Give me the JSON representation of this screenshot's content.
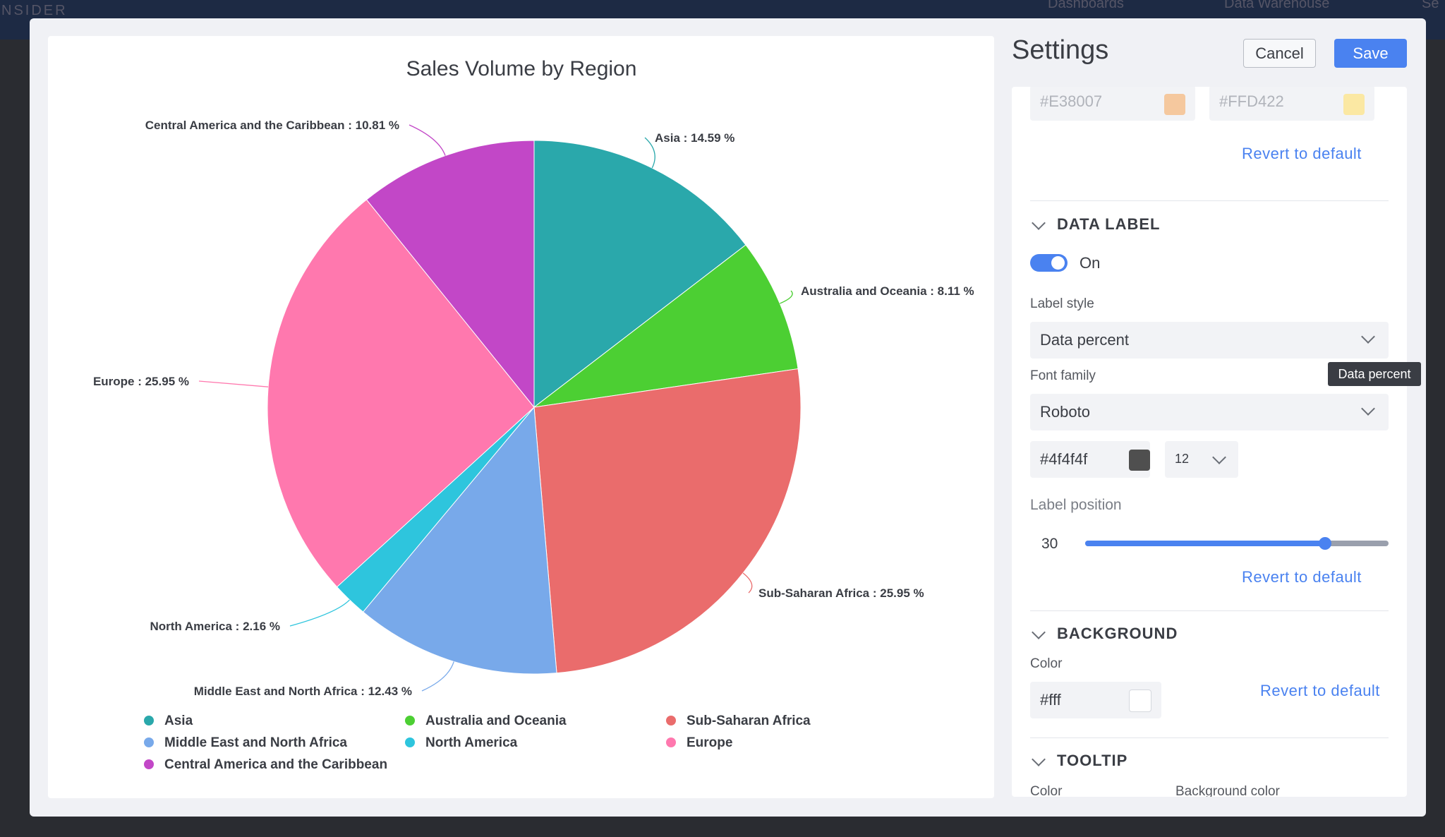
{
  "background": {
    "brand": "NSIDER",
    "nav_dashboards": "Dashboards",
    "nav_data_warehouse": "Data Warehouse",
    "nav_settings": "Se"
  },
  "chart_data": {
    "type": "pie",
    "title": "Sales Volume by Region",
    "slices": [
      {
        "name": "Asia",
        "value": 14.59,
        "color": "#2aa8ab",
        "label": "Asia : 14.59 %"
      },
      {
        "name": "Australia and Oceania",
        "value": 8.11,
        "color": "#4ccf33",
        "label": "Australia and Oceania : 8.11 %"
      },
      {
        "name": "Sub-Saharan Africa",
        "value": 25.95,
        "color": "#ea6c6c",
        "label": "Sub-Saharan Africa : 25.95 %"
      },
      {
        "name": "Middle East and North Africa",
        "value": 12.43,
        "color": "#78a9ea",
        "label": "Middle East and North Africa : 12.43 %"
      },
      {
        "name": "North America",
        "value": 2.16,
        "color": "#2ec5dd",
        "label": "North America : 2.16 %"
      },
      {
        "name": "Europe",
        "value": 25.95,
        "color": "#ff78ae",
        "label": "Europe : 25.95 %"
      },
      {
        "name": "Central America and the Caribbean",
        "value": 10.81,
        "color": "#c247c7",
        "label": "Central America and the Caribbean : 10.81 %"
      }
    ],
    "legend": {
      "position": "bottom",
      "columns": 3
    }
  },
  "header": {
    "title": "Settings",
    "cancel_label": "Cancel",
    "save_label": "Save"
  },
  "settings": {
    "colors_top": {
      "color1": "#E38007",
      "color2": "#FFD422",
      "swatch1": "#f5c89e",
      "swatch2": "#fbe8a3"
    },
    "revert_label": "Revert to default",
    "data_label": {
      "section_title": "DATA LABEL",
      "toggle_state": "On",
      "label_style_label": "Label style",
      "label_style_value": "Data percent",
      "font_family_label": "Font family",
      "font_family_value": "Roboto",
      "font_color": "#4f4f4f",
      "font_size": "12",
      "label_position_label": "Label position",
      "label_position_value": "30",
      "label_position_fraction": 0.79,
      "tooltip_text": "Data percent"
    },
    "background": {
      "section_title": "BACKGROUND",
      "color_label": "Color",
      "color_value": "#fff"
    },
    "tooltip": {
      "section_title": "TOOLTIP",
      "color_label": "Color",
      "bg_color_label": "Background color"
    }
  }
}
